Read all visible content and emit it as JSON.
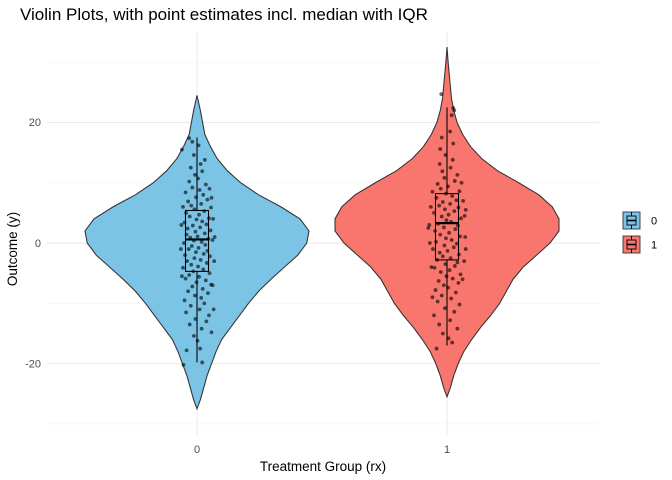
{
  "chart_data": {
    "type": "violin",
    "title": "Violin Plots, with point estimates incl. median with IQR",
    "xlabel": "Treatment Group (rx)",
    "ylabel": "Outcome (y)",
    "categories": [
      "0",
      "1"
    ],
    "ylim": [
      -32,
      35
    ],
    "yticks": [
      -20,
      0,
      20
    ],
    "grid": true,
    "legend": {
      "placement": "right",
      "entries": [
        {
          "label": "0",
          "color": "#7CC4E6"
        },
        {
          "label": "1",
          "color": "#F8766D"
        }
      ]
    },
    "series": [
      {
        "group": "0",
        "color": "#7CC4E6",
        "range": [
          -27.5,
          24.5
        ],
        "box": {
          "lower_whisker": -19.8,
          "q1": -4.7,
          "median": 0.6,
          "q3": 5.4,
          "upper_whisker": 17.5
        },
        "density": [
          [
            -27.5,
            0.0
          ],
          [
            -26.0,
            0.03
          ],
          [
            -24.0,
            0.06
          ],
          [
            -22.0,
            0.09
          ],
          [
            -20.0,
            0.13
          ],
          [
            -18.0,
            0.17
          ],
          [
            -16.0,
            0.22
          ],
          [
            -14.0,
            0.3
          ],
          [
            -12.0,
            0.38
          ],
          [
            -10.0,
            0.46
          ],
          [
            -8.0,
            0.55
          ],
          [
            -6.0,
            0.66
          ],
          [
            -4.0,
            0.78
          ],
          [
            -2.0,
            0.9
          ],
          [
            0.0,
            0.98
          ],
          [
            2.0,
            1.0
          ],
          [
            4.0,
            0.92
          ],
          [
            6.0,
            0.75
          ],
          [
            8.0,
            0.55
          ],
          [
            10.0,
            0.39
          ],
          [
            12.0,
            0.27
          ],
          [
            14.0,
            0.18
          ],
          [
            16.0,
            0.12
          ],
          [
            18.0,
            0.07
          ],
          [
            20.0,
            0.05
          ],
          [
            22.0,
            0.03
          ],
          [
            24.5,
            0.0
          ]
        ],
        "points": [
          [
            -20.2,
            -0.26
          ],
          [
            -19.8,
            0.1
          ],
          [
            -17.8,
            -0.2
          ],
          [
            -17.5,
            0.06
          ],
          [
            -16.2,
            0.01
          ],
          [
            -15.4,
            -0.06
          ],
          [
            -14.8,
            0.28
          ],
          [
            -14.2,
            0.09
          ],
          [
            -13.5,
            -0.14
          ],
          [
            -13.0,
            0.18
          ],
          [
            -12.6,
            -0.03
          ],
          [
            -12.0,
            0.23
          ],
          [
            -11.5,
            -0.21
          ],
          [
            -11.0,
            0.05
          ],
          [
            -10.4,
            -0.12
          ],
          [
            -10.0,
            0.14
          ],
          [
            -9.5,
            -0.24
          ],
          [
            -9.1,
            0.08
          ],
          [
            -8.7,
            -0.04
          ],
          [
            -8.3,
            0.21
          ],
          [
            -8.0,
            -0.17
          ],
          [
            -7.6,
            0.11
          ],
          [
            -7.2,
            -0.09
          ],
          [
            -6.9,
            0.27
          ],
          [
            -6.5,
            -0.01
          ],
          [
            -6.2,
            0.17
          ],
          [
            -5.9,
            -0.22
          ],
          [
            -5.6,
            0.04
          ],
          [
            -5.3,
            -0.15
          ],
          [
            -5.0,
            0.24
          ],
          [
            -4.7,
            -0.07
          ],
          [
            -4.4,
            0.12
          ],
          [
            -4.1,
            -0.27
          ],
          [
            -3.9,
            0.02
          ],
          [
            -3.6,
            -0.11
          ],
          [
            -3.3,
            0.19
          ],
          [
            -3.0,
            -0.19
          ],
          [
            -2.8,
            0.07
          ],
          [
            -2.5,
            -0.05
          ],
          [
            -2.2,
            0.25
          ],
          [
            -2.0,
            -0.23
          ],
          [
            -1.8,
            0.13
          ],
          [
            -1.5,
            -0.02
          ],
          [
            -1.3,
            0.2
          ],
          [
            -1.0,
            -0.16
          ],
          [
            -0.8,
            0.03
          ],
          [
            -0.5,
            -0.1
          ],
          [
            -0.3,
            0.16
          ],
          [
            0.0,
            -0.25
          ],
          [
            0.2,
            0.09
          ],
          [
            0.4,
            -0.06
          ],
          [
            0.7,
            0.22
          ],
          [
            0.9,
            -0.13
          ],
          [
            1.1,
            0.01
          ],
          [
            1.4,
            -0.2
          ],
          [
            1.6,
            0.15
          ],
          [
            1.9,
            -0.03
          ],
          [
            2.1,
            0.26
          ],
          [
            2.4,
            -0.18
          ],
          [
            2.6,
            0.06
          ],
          [
            2.9,
            -0.08
          ],
          [
            3.1,
            0.18
          ],
          [
            3.4,
            -0.24
          ],
          [
            3.6,
            0.1
          ],
          [
            3.9,
            -0.01
          ],
          [
            4.1,
            0.23
          ],
          [
            4.4,
            -0.14
          ],
          [
            4.7,
            0.04
          ],
          [
            5.0,
            -0.21
          ],
          [
            5.3,
            0.14
          ],
          [
            5.6,
            -0.05
          ],
          [
            5.9,
            0.27
          ],
          [
            6.2,
            -0.11
          ],
          [
            6.5,
            0.08
          ],
          [
            6.9,
            -0.17
          ],
          [
            7.2,
            0.2
          ],
          [
            7.6,
            -0.02
          ],
          [
            8.0,
            0.12
          ],
          [
            8.4,
            -0.22
          ],
          [
            8.8,
            0.05
          ],
          [
            9.2,
            -0.09
          ],
          [
            9.7,
            0.17
          ],
          [
            10.2,
            -0.15
          ],
          [
            10.7,
            0.02
          ],
          [
            11.3,
            -0.04
          ],
          [
            11.9,
            0.1
          ],
          [
            12.5,
            -0.12
          ],
          [
            13.1,
            0.07
          ],
          [
            13.8,
            0.15
          ],
          [
            14.6,
            -0.06
          ],
          [
            15.5,
            -0.29
          ],
          [
            16.2,
            0.03
          ],
          [
            16.8,
            -0.09
          ],
          [
            17.4,
            -0.15
          ],
          [
            -7.0,
            0.3
          ],
          [
            -3.0,
            0.33
          ],
          [
            1.0,
            0.34
          ],
          [
            4.0,
            0.31
          ],
          [
            7.5,
            0.28
          ],
          [
            -1.0,
            -0.31
          ],
          [
            3.0,
            -0.3
          ],
          [
            6.0,
            -0.27
          ],
          [
            -5.5,
            -0.29
          ],
          [
            9.0,
            0.24
          ],
          [
            -11.0,
            0.32
          ],
          [
            0.5,
            0.3
          ]
        ]
      },
      {
        "group": "1",
        "color": "#F8766D",
        "range": [
          -25.5,
          32.5
        ],
        "box": {
          "lower_whisker": -17.0,
          "q1": -2.8,
          "median": 3.3,
          "q3": 8.2,
          "upper_whisker": 22.5
        },
        "density": [
          [
            -25.5,
            0.0
          ],
          [
            -24.0,
            0.03
          ],
          [
            -22.0,
            0.06
          ],
          [
            -20.0,
            0.1
          ],
          [
            -18.0,
            0.15
          ],
          [
            -16.0,
            0.22
          ],
          [
            -14.0,
            0.3
          ],
          [
            -12.0,
            0.39
          ],
          [
            -10.0,
            0.47
          ],
          [
            -8.0,
            0.53
          ],
          [
            -6.0,
            0.59
          ],
          [
            -4.0,
            0.68
          ],
          [
            -2.0,
            0.8
          ],
          [
            0.0,
            0.92
          ],
          [
            2.0,
            1.0
          ],
          [
            4.0,
            1.0
          ],
          [
            6.0,
            0.94
          ],
          [
            8.0,
            0.82
          ],
          [
            10.0,
            0.64
          ],
          [
            12.0,
            0.45
          ],
          [
            14.0,
            0.31
          ],
          [
            16.0,
            0.21
          ],
          [
            18.0,
            0.14
          ],
          [
            20.0,
            0.09
          ],
          [
            22.0,
            0.06
          ],
          [
            24.0,
            0.04
          ],
          [
            26.0,
            0.03
          ],
          [
            28.0,
            0.02
          ],
          [
            30.0,
            0.01
          ],
          [
            32.5,
            0.0
          ]
        ],
        "points": [
          [
            -17.5,
            -0.2
          ],
          [
            -16.5,
            0.1
          ],
          [
            -15.8,
            0.03
          ],
          [
            -15.0,
            -0.08
          ],
          [
            -14.2,
            0.2
          ],
          [
            -13.5,
            -0.15
          ],
          [
            -12.8,
            0.06
          ],
          [
            -12.0,
            -0.25
          ],
          [
            -11.4,
            0.14
          ],
          [
            -10.8,
            -0.04
          ],
          [
            -10.2,
            0.24
          ],
          [
            -9.7,
            -0.18
          ],
          [
            -9.2,
            0.08
          ],
          [
            -8.7,
            -0.1
          ],
          [
            -8.2,
            0.17
          ],
          [
            -7.8,
            -0.22
          ],
          [
            -7.4,
            0.02
          ],
          [
            -7.0,
            -0.06
          ],
          [
            -6.6,
            0.22
          ],
          [
            -6.3,
            -0.16
          ],
          [
            -5.9,
            0.11
          ],
          [
            -5.5,
            -0.01
          ],
          [
            -5.2,
            0.26
          ],
          [
            -4.8,
            -0.12
          ],
          [
            -4.5,
            0.05
          ],
          [
            -4.1,
            -0.24
          ],
          [
            -3.8,
            0.15
          ],
          [
            -3.5,
            -0.03
          ],
          [
            -3.2,
            0.2
          ],
          [
            -2.8,
            -0.19
          ],
          [
            -2.5,
            0.07
          ],
          [
            -2.2,
            -0.08
          ],
          [
            -1.9,
            0.23
          ],
          [
            -1.6,
            -0.14
          ],
          [
            -1.3,
            0.01
          ],
          [
            -1.0,
            -0.27
          ],
          [
            -0.7,
            0.13
          ],
          [
            -0.4,
            -0.05
          ],
          [
            -0.1,
            0.19
          ],
          [
            0.2,
            -0.21
          ],
          [
            0.5,
            0.09
          ],
          [
            0.8,
            -0.02
          ],
          [
            1.1,
            0.25
          ],
          [
            1.4,
            -0.13
          ],
          [
            1.7,
            0.04
          ],
          [
            2.0,
            -0.23
          ],
          [
            2.3,
            0.16
          ],
          [
            2.6,
            -0.06
          ],
          [
            2.9,
            0.21
          ],
          [
            3.2,
            -0.17
          ],
          [
            3.5,
            0.08
          ],
          [
            3.8,
            -0.01
          ],
          [
            4.1,
            0.27
          ],
          [
            4.4,
            -0.1
          ],
          [
            4.7,
            0.03
          ],
          [
            5.0,
            -0.25
          ],
          [
            5.3,
            0.14
          ],
          [
            5.6,
            -0.04
          ],
          [
            5.9,
            0.22
          ],
          [
            6.2,
            -0.15
          ],
          [
            6.5,
            0.06
          ],
          [
            6.8,
            -0.08
          ],
          [
            7.1,
            0.18
          ],
          [
            7.5,
            -0.2
          ],
          [
            7.8,
            0.1
          ],
          [
            8.2,
            -0.02
          ],
          [
            8.6,
            0.24
          ],
          [
            9.0,
            -0.12
          ],
          [
            9.4,
            0.02
          ],
          [
            9.8,
            -0.18
          ],
          [
            10.3,
            0.15
          ],
          [
            10.8,
            -0.05
          ],
          [
            11.3,
            0.2
          ],
          [
            11.9,
            -0.09
          ],
          [
            12.5,
            0.07
          ],
          [
            13.1,
            -0.14
          ],
          [
            13.8,
            0.11
          ],
          [
            14.6,
            -0.03
          ],
          [
            15.6,
            -0.13
          ],
          [
            16.5,
            0.12
          ],
          [
            17.5,
            -0.1
          ],
          [
            18.5,
            0.06
          ],
          [
            21.2,
            0.09
          ],
          [
            22.0,
            0.14
          ],
          [
            22.4,
            0.12
          ],
          [
            24.7,
            -0.11
          ],
          [
            -3.0,
            0.33
          ],
          [
            1.0,
            0.35
          ],
          [
            4.5,
            0.34
          ],
          [
            7.0,
            0.31
          ],
          [
            -6.0,
            0.3
          ],
          [
            0.0,
            -0.33
          ],
          [
            3.0,
            -0.34
          ],
          [
            6.0,
            -0.31
          ],
          [
            -9.0,
            -0.28
          ],
          [
            10.0,
            0.28
          ],
          [
            -1.0,
            0.36
          ],
          [
            2.5,
            -0.36
          ],
          [
            5.5,
            0.36
          ],
          [
            -4.0,
            -0.3
          ],
          [
            8.5,
            -0.28
          ]
        ]
      }
    ]
  }
}
